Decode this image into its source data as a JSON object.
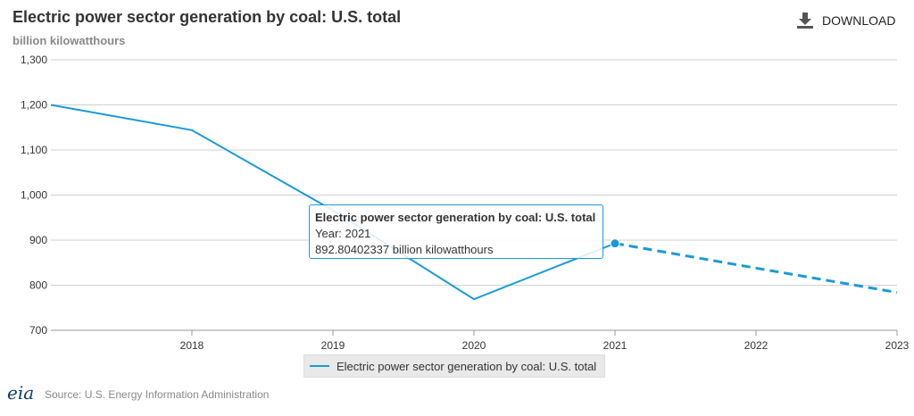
{
  "header": {
    "title": "Electric power sector generation by coal: U.S. total",
    "unit": "billion kilowatthours",
    "download_label": "DOWNLOAD"
  },
  "tooltip": {
    "title": "Electric power sector generation by coal: U.S. total",
    "year": "Year: 2021",
    "value": "892.80402337 billion kilowatthours"
  },
  "legend": {
    "label": "Electric power sector generation by coal: U.S. total"
  },
  "footer": {
    "source": "Source: U.S. Energy Information Administration",
    "logo": "eia"
  },
  "colors": {
    "series": "#1a9ad6"
  },
  "chart_data": {
    "type": "line",
    "title": "Electric power sector generation by coal: U.S. total",
    "ylabel": "billion kilowatthours",
    "x": [
      2017,
      2018,
      2019,
      2020,
      2021,
      2022,
      2023
    ],
    "series": [
      {
        "name": "Electric power sector generation by coal: U.S. total",
        "values": [
          1200,
          1144,
          966,
          769,
          892.80402337,
          838,
          784
        ],
        "dashed_from": 2021
      }
    ],
    "xlim": [
      2017,
      2023
    ],
    "ylim": [
      700,
      1300
    ],
    "yticks": [
      700,
      800,
      900,
      1000,
      1100,
      1200,
      1300
    ],
    "ytick_labels": [
      "700",
      "800",
      "900",
      "1,000",
      "1,100",
      "1,200",
      "1,300"
    ],
    "xticks": [
      2018,
      2019,
      2020,
      2021,
      2022,
      2023
    ],
    "xtick_labels": [
      "2018",
      "2019",
      "2020",
      "2021",
      "2022",
      "2023"
    ],
    "highlight": 2021,
    "grid": true,
    "legend_position": "bottom-center"
  }
}
